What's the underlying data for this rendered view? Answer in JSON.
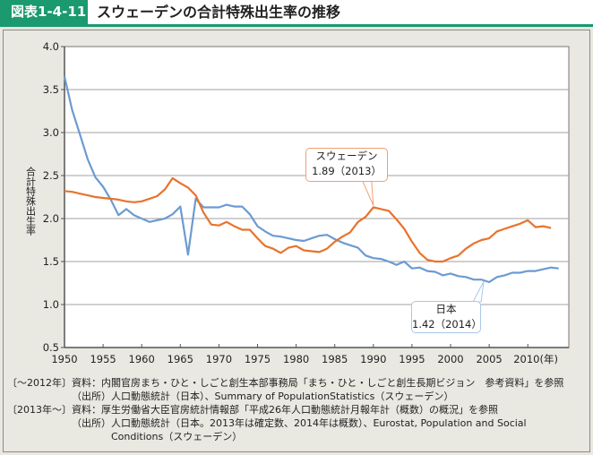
{
  "header": {
    "figure_number": "図表1-4-11",
    "title": "スウェーデンの合計特殊出生率の推移"
  },
  "chart_data": {
    "type": "line",
    "title": "スウェーデンの合計特殊出生率の推移",
    "xlabel": "(年)",
    "ylabel": "合計特殊出生率",
    "xlim": [
      1950,
      2015
    ],
    "ylim": [
      0.5,
      4.0
    ],
    "x_ticks": [
      "1950",
      "1955",
      "1960",
      "1965",
      "1970",
      "1975",
      "1980",
      "1985",
      "1990",
      "1995",
      "2000",
      "2005",
      "2010(年)"
    ],
    "y_ticks": [
      "4.0",
      "3.5",
      "3.0",
      "2.5",
      "2.0",
      "1.5",
      "1.0",
      "0.5"
    ],
    "grid": true,
    "colors": {
      "sweden": "#e8732c",
      "japan": "#6b9bd2"
    },
    "series": [
      {
        "name": "日本",
        "x": [
          1950,
          1951,
          1952,
          1953,
          1954,
          1955,
          1956,
          1957,
          1958,
          1959,
          1960,
          1961,
          1962,
          1963,
          1964,
          1965,
          1966,
          1967,
          1968,
          1969,
          1970,
          1971,
          1972,
          1973,
          1974,
          1975,
          1976,
          1977,
          1978,
          1979,
          1980,
          1981,
          1982,
          1983,
          1984,
          1985,
          1986,
          1987,
          1988,
          1989,
          1990,
          1991,
          1992,
          1993,
          1994,
          1995,
          1996,
          1997,
          1998,
          1999,
          2000,
          2001,
          2002,
          2003,
          2004,
          2005,
          2006,
          2007,
          2008,
          2009,
          2010,
          2011,
          2012,
          2013,
          2014
        ],
        "values": [
          3.65,
          3.26,
          2.98,
          2.69,
          2.48,
          2.37,
          2.22,
          2.04,
          2.11,
          2.04,
          2.0,
          1.96,
          1.98,
          2.0,
          2.05,
          2.14,
          1.58,
          2.23,
          2.13,
          2.13,
          2.13,
          2.16,
          2.14,
          2.14,
          2.05,
          1.91,
          1.85,
          1.8,
          1.79,
          1.77,
          1.75,
          1.74,
          1.77,
          1.8,
          1.81,
          1.76,
          1.72,
          1.69,
          1.66,
          1.57,
          1.54,
          1.53,
          1.5,
          1.46,
          1.5,
          1.42,
          1.43,
          1.39,
          1.38,
          1.34,
          1.36,
          1.33,
          1.32,
          1.29,
          1.29,
          1.26,
          1.32,
          1.34,
          1.37,
          1.37,
          1.39,
          1.39,
          1.41,
          1.43,
          1.42
        ]
      },
      {
        "name": "スウェーデン",
        "x": [
          1950,
          1951,
          1952,
          1953,
          1954,
          1955,
          1956,
          1957,
          1958,
          1959,
          1960,
          1961,
          1962,
          1963,
          1964,
          1965,
          1966,
          1967,
          1968,
          1969,
          1970,
          1971,
          1972,
          1973,
          1974,
          1975,
          1976,
          1977,
          1978,
          1979,
          1980,
          1981,
          1982,
          1983,
          1984,
          1985,
          1986,
          1987,
          1988,
          1989,
          1990,
          1991,
          1992,
          1993,
          1994,
          1995,
          1996,
          1997,
          1998,
          1999,
          2000,
          2001,
          2002,
          2003,
          2004,
          2005,
          2006,
          2007,
          2008,
          2009,
          2010,
          2011,
          2012,
          2013
        ],
        "values": [
          2.32,
          2.31,
          2.29,
          2.27,
          2.25,
          2.24,
          2.23,
          2.22,
          2.2,
          2.19,
          2.2,
          2.23,
          2.26,
          2.34,
          2.47,
          2.41,
          2.36,
          2.27,
          2.07,
          1.93,
          1.92,
          1.96,
          1.91,
          1.87,
          1.87,
          1.77,
          1.68,
          1.65,
          1.6,
          1.66,
          1.68,
          1.63,
          1.62,
          1.61,
          1.65,
          1.73,
          1.79,
          1.84,
          1.96,
          2.02,
          2.13,
          2.11,
          2.09,
          1.99,
          1.88,
          1.73,
          1.6,
          1.52,
          1.5,
          1.5,
          1.54,
          1.57,
          1.65,
          1.71,
          1.75,
          1.77,
          1.85,
          1.88,
          1.91,
          1.94,
          1.98,
          1.9,
          1.91,
          1.89
        ]
      }
    ],
    "annotations": [
      {
        "series": "スウェーデン",
        "label": "スウェーデン",
        "value_text": "1.89（2013）",
        "anchor_x": 1990
      },
      {
        "series": "日本",
        "label": "日本",
        "value_text": "1.42（2014）",
        "anchor_x": 2004
      }
    ]
  },
  "notes": [
    {
      "label": "〔～2012年〕",
      "text": "資料：内閣官房まち・ひと・しごと創生本部事務局「まち・ひと・しごと創生長期ビジョン　参考資料」を参照"
    },
    {
      "label": "",
      "text": "（出所）人口動態統計（日本）、Summary of PopulationStatistics（スウェーデン）"
    },
    {
      "label": "〔2013年～〕",
      "text": "資料：厚生労働省大臣官房統計情報部「平成26年人口動態統計月報年計（概数）の概況」を参照"
    },
    {
      "label": "",
      "text": "（出所）人口動態統計（日本。2013年は確定数、2014年は概数）、Eurostat, Population and Social"
    },
    {
      "label": "",
      "text": "　　　　Conditions（スウェーデン）"
    }
  ]
}
